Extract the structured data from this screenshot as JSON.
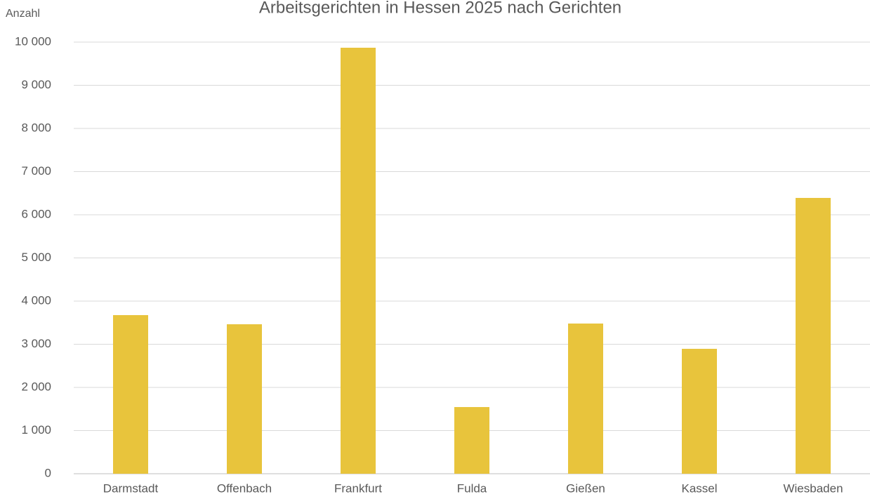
{
  "chart_data": {
    "type": "bar",
    "title": "Arbeitsgerichten in Hessen 2025 nach Gerichten",
    "y_label": "Anzahl",
    "categories": [
      "Darmstadt",
      "Offenbach",
      "Frankfurt",
      "Fulda",
      "Gießen",
      "Kassel",
      "Wiesbaden"
    ],
    "values": [
      3675,
      3463,
      9870,
      1545,
      3480,
      2894,
      6390
    ],
    "color": "#e8c43c",
    "ylim": [
      0,
      10000
    ],
    "yticks": [
      0,
      {
        "value": 1000,
        "label": "1 000"
      },
      {
        "value": 2000,
        "label": "2 000"
      },
      {
        "value": 3000,
        "label": "3 000"
      },
      {
        "value": 4000,
        "label": "4 000"
      },
      {
        "value": 5000,
        "label": "5 000"
      },
      {
        "value": 6000,
        "label": "6 000"
      },
      {
        "value": 7000,
        "label": "7 000"
      },
      {
        "value": 8000,
        "label": "8 000"
      },
      {
        "value": 9000,
        "label": "9 000"
      },
      {
        "value": 10000,
        "label": "10 000"
      }
    ],
    "grid": true
  }
}
